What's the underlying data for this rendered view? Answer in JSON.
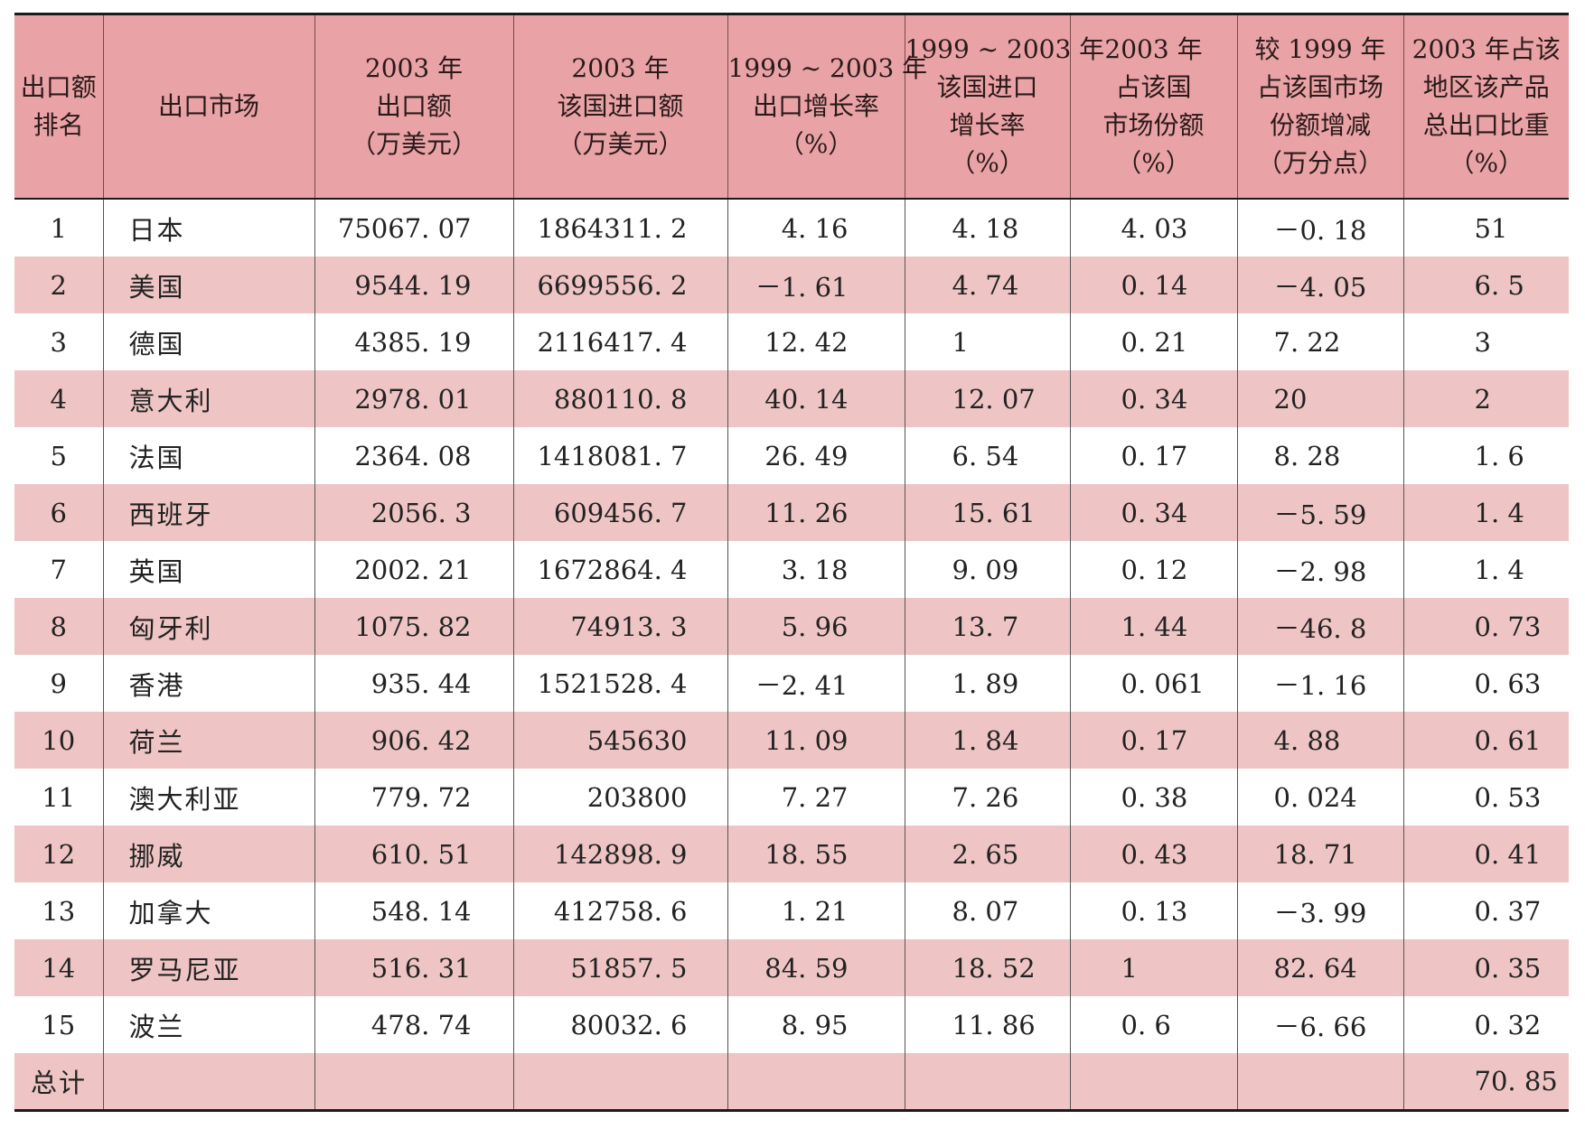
{
  "table": {
    "headers": [
      [
        "出口额",
        "排名"
      ],
      [
        "出口市场"
      ],
      [
        "2003 年",
        "出口额",
        "（万美元）"
      ],
      [
        "2003 年",
        "该国进口额",
        "（万美元）"
      ],
      [
        "1999 ~ 2003 年",
        "出口增长率",
        "（%）"
      ],
      [
        "1999 ~ 2003 年",
        "该国进口",
        "增长率",
        "（%）"
      ],
      [
        "2003 年",
        "占该国",
        "市场份额",
        "（%）"
      ],
      [
        "较 1999 年",
        "占该国市场",
        "份额增减",
        "（万分点）"
      ],
      [
        "2003 年占该",
        "地区该产品",
        "总出口比重",
        "（%）"
      ]
    ],
    "rows": [
      [
        "1",
        "日本",
        "75067. 07",
        "1864311. 2",
        "4. 16",
        "4. 18",
        "4. 03",
        "－0. 18",
        "51"
      ],
      [
        "2",
        "美国",
        "9544. 19",
        "6699556. 2",
        "－1. 61",
        "4. 74",
        "0. 14",
        "－4. 05",
        "6. 5"
      ],
      [
        "3",
        "德国",
        "4385. 19",
        "2116417. 4",
        "12. 42",
        "1",
        "0. 21",
        "7. 22",
        "3"
      ],
      [
        "4",
        "意大利",
        "2978. 01",
        "880110. 8",
        "40. 14",
        "12. 07",
        "0. 34",
        "20",
        "2"
      ],
      [
        "5",
        "法国",
        "2364. 08",
        "1418081. 7",
        "26. 49",
        "6. 54",
        "0. 17",
        "8. 28",
        "1. 6"
      ],
      [
        "6",
        "西班牙",
        "2056. 3",
        "609456. 7",
        "11. 26",
        "15. 61",
        "0. 34",
        "－5. 59",
        "1. 4"
      ],
      [
        "7",
        "英国",
        "2002. 21",
        "1672864. 4",
        "3. 18",
        "9. 09",
        "0. 12",
        "－2. 98",
        "1. 4"
      ],
      [
        "8",
        "匈牙利",
        "1075. 82",
        "74913. 3",
        "5. 96",
        "13. 7",
        "1. 44",
        "－46. 8",
        "0. 73"
      ],
      [
        "9",
        "香港",
        "935. 44",
        "1521528. 4",
        "－2. 41",
        "1. 89",
        "0. 061",
        "－1. 16",
        "0. 63"
      ],
      [
        "10",
        "荷兰",
        "906. 42",
        "545630",
        "11. 09",
        "1. 84",
        "0. 17",
        "4. 88",
        "0. 61"
      ],
      [
        "11",
        "澳大利亚",
        "779. 72",
        "203800",
        "7. 27",
        "7. 26",
        "0. 38",
        "0. 024",
        "0. 53"
      ],
      [
        "12",
        "挪威",
        "610. 51",
        "142898. 9",
        "18. 55",
        "2. 65",
        "0. 43",
        "18. 71",
        "0. 41"
      ],
      [
        "13",
        "加拿大",
        "548. 14",
        "412758. 6",
        "1. 21",
        "8. 07",
        "0. 13",
        "－3. 99",
        "0. 37"
      ],
      [
        "14",
        "罗马尼亚",
        "516. 31",
        "51857. 5",
        "84. 59",
        "18. 52",
        "1",
        "82. 64",
        "0. 35"
      ],
      [
        "15",
        "波兰",
        "478. 74",
        "80032. 6",
        "8. 95",
        "11. 86",
        "0. 6",
        "－6. 66",
        "0. 32"
      ]
    ],
    "total": {
      "label": "总计",
      "value": "70. 85"
    }
  }
}
